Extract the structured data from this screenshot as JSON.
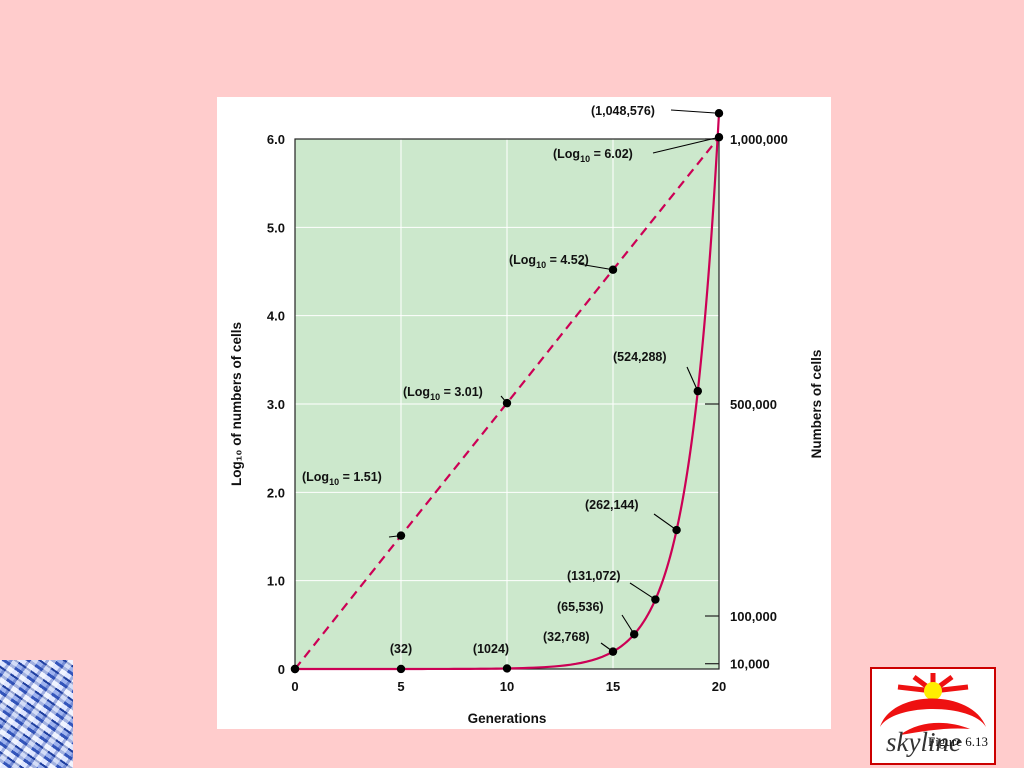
{
  "slide": {
    "caption": "Figure 6.13",
    "logo_text": "skyline",
    "background_color": "#ffcccc"
  },
  "chart_data": {
    "type": "line",
    "xlabel": "Generations",
    "ylabel": "Log₁₀ of numbers of cells",
    "y2label": "Numbers of cells",
    "xlim": [
      0,
      20
    ],
    "ylim": [
      0,
      6
    ],
    "y2lim": [
      0,
      1000000
    ],
    "x_ticks": [
      "0",
      "5",
      "10",
      "15",
      "20"
    ],
    "y_ticks": [
      "0",
      "1.0",
      "2.0",
      "3.0",
      "4.0",
      "5.0",
      "6.0"
    ],
    "y2_ticks": [
      {
        "value": 10000,
        "label": "10,000"
      },
      {
        "value": 100000,
        "label": "100,000"
      },
      {
        "value": 500000,
        "label": "500,000"
      },
      {
        "value": 1000000,
        "label": "1,000,000"
      }
    ],
    "grid": true,
    "plot_background": "#cce8cc",
    "series": [
      {
        "axis": "left",
        "style": "dashed",
        "color": "#cc0055",
        "points": [
          [
            0,
            0
          ],
          [
            5,
            1.51
          ],
          [
            10,
            3.01
          ],
          [
            15,
            4.52
          ],
          [
            20,
            6.02
          ]
        ],
        "labels": [
          {
            "x": 5,
            "sub": "10",
            "text": "1.51",
            "prefix": "(Log",
            "suffix": ")"
          },
          {
            "x": 10,
            "sub": "10",
            "text": "3.01",
            "prefix": "(Log",
            "suffix": ")"
          },
          {
            "x": 15,
            "sub": "10",
            "text": "4.52",
            "prefix": "(Log",
            "suffix": ")"
          },
          {
            "x": 20,
            "sub": "10",
            "text": "6.02",
            "prefix": "(Log",
            "suffix": ")"
          }
        ]
      },
      {
        "axis": "right",
        "style": "solid",
        "color": "#cc0055",
        "points": [
          [
            0,
            1
          ],
          [
            5,
            32
          ],
          [
            10,
            1024
          ],
          [
            15,
            32768
          ],
          [
            16,
            65536
          ],
          [
            17,
            131072
          ],
          [
            18,
            262144
          ],
          [
            19,
            524288
          ],
          [
            20,
            1048576
          ]
        ],
        "labels": [
          {
            "x": 5,
            "text": "(32)"
          },
          {
            "x": 10,
            "text": "(1024)"
          },
          {
            "x": 15,
            "text": "(32,768)"
          },
          {
            "x": 16,
            "text": "(65,536)"
          },
          {
            "x": 17,
            "text": "(131,072)"
          },
          {
            "x": 18,
            "text": "(262,144)"
          },
          {
            "x": 19,
            "text": "(524,288)"
          },
          {
            "x": 20,
            "text": "(1,048,576)"
          }
        ]
      }
    ]
  }
}
